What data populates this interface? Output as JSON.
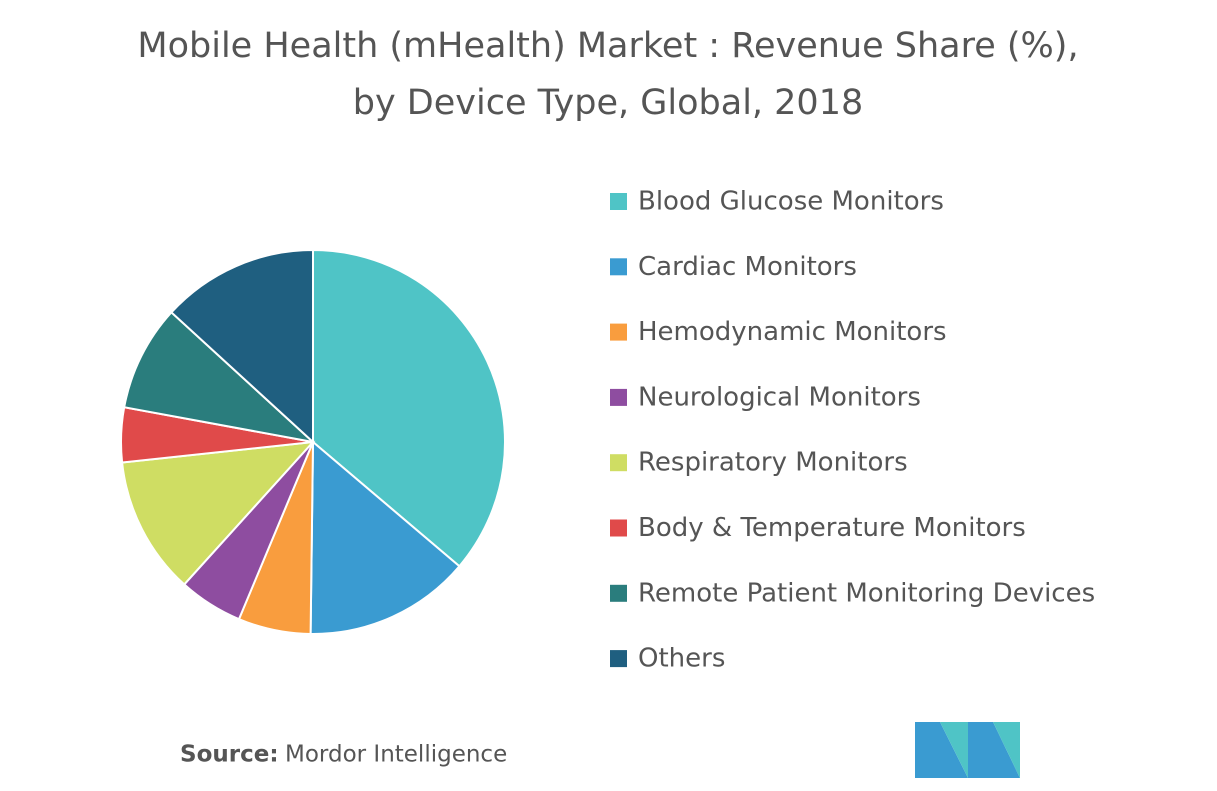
{
  "chart_data": {
    "type": "pie",
    "title": "Mobile Health (mHealth) Market : Revenue Share (%), by Device Type, Global, 2018",
    "categories": [
      "Blood Glucose Monitors",
      "Cardiac Monitors",
      "Hemodynamic Monitors",
      "Neurological Monitors",
      "Respiratory Monitors",
      "Body & Temperature Monitors",
      "Remote Patient Monitoring Devices",
      "Others"
    ],
    "values": [
      36.2,
      14.0,
      6.1,
      5.4,
      11.6,
      4.6,
      8.9,
      13.2
    ],
    "colors": [
      "#4fc4c6",
      "#3a9bd1",
      "#f99d3e",
      "#8e4da0",
      "#cfdd63",
      "#e04a4a",
      "#2a7d7d",
      "#1f5f80"
    ],
    "legend": "right",
    "source_label": "Source:",
    "source": "Mordor Intelligence"
  }
}
